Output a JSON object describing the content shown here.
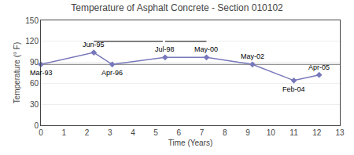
{
  "chart_data": {
    "type": "line",
    "title": "Temperature of Asphalt Concrete - Section 010102",
    "xlabel": "Time (Years)",
    "ylabel": "Temperature (° F)",
    "x": [
      0.0,
      2.3,
      3.1,
      5.4,
      7.2,
      9.2,
      11.0,
      12.1
    ],
    "values": [
      87,
      104,
      87,
      97,
      97,
      87,
      64,
      72
    ],
    "point_labels": [
      "Mar-93",
      "Jun-95",
      "Apr-96",
      "Jul-98",
      "May-00",
      "May-02",
      "Feb-04",
      "Apr-05"
    ],
    "color": "#7777bb",
    "marker": "diamond",
    "reference_line": 87,
    "lines": [
      {
        "x": [
          2.3,
          5.3
        ],
        "y": [
          120,
          120
        ]
      },
      {
        "x": [
          5.4,
          7.2
        ],
        "y": [
          120,
          120
        ]
      }
    ],
    "xlim": [
      0,
      13
    ],
    "xticks": [
      0,
      1,
      2,
      3,
      4,
      5,
      6,
      7,
      8,
      9,
      10,
      11,
      12,
      13
    ],
    "ylim": [
      0,
      150
    ],
    "yticks": [
      0,
      30,
      60,
      90,
      120,
      150
    ],
    "grid": "y"
  }
}
